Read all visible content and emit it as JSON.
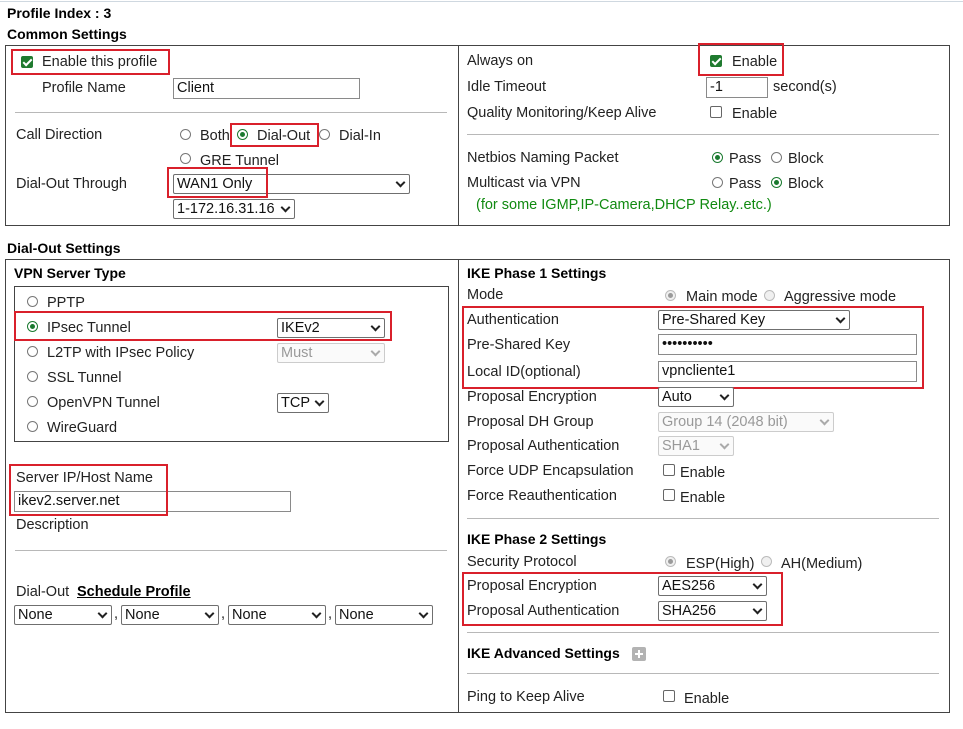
{
  "page": {
    "profile_index": "Profile Index : 3",
    "common_settings_title": "Common Settings",
    "dialout_settings_title": "Dial-Out Settings"
  },
  "common": {
    "enable_profile_label": "Enable this profile",
    "enable_profile_checked": true,
    "profile_name_label": "Profile Name",
    "profile_name_value": "Client",
    "call_direction_label": "Call Direction",
    "call_direction_options": [
      "Both",
      "Dial-Out",
      "Dial-In",
      "GRE Tunnel"
    ],
    "call_direction_selected": "Dial-Out",
    "dialout_through_label": "Dial-Out Through",
    "dialout_through_value": "WAN1 Only",
    "dialout_ip_value": "1-172.16.31.16",
    "always_on_label": "Always on",
    "always_on_enable_label": "Enable",
    "always_on_checked": true,
    "idle_timeout_label": "Idle Timeout",
    "idle_timeout_value": "-1",
    "idle_timeout_unit": "second(s)",
    "quality_label": "Quality Monitoring/Keep Alive",
    "quality_enable_label": "Enable",
    "quality_checked": false,
    "netbios_label": "Netbios Naming Packet",
    "netbios_pass": "Pass",
    "netbios_block": "Block",
    "netbios_selected": "Pass",
    "multicast_label": "Multicast via VPN",
    "multicast_pass": "Pass",
    "multicast_block": "Block",
    "multicast_selected": "Block",
    "multicast_note": "(for some IGMP,IP-Camera,DHCP Relay..etc.)"
  },
  "dialout": {
    "vpn_server_type_title": "VPN Server Type",
    "vpn_types": [
      "PPTP",
      "IPsec Tunnel",
      "L2TP with IPsec Policy",
      "SSL Tunnel",
      "OpenVPN Tunnel",
      "WireGuard"
    ],
    "vpn_type_selected": "IPsec Tunnel",
    "ipsec_version": "IKEv2",
    "l2tp_policy": "Must",
    "openvpn_proto": "TCP",
    "server_host_label": "Server IP/Host Name",
    "server_host_value": "ikev2.server.net",
    "description_label": "Description",
    "dialout_label": "Dial-Out",
    "schedule_profile_link": "Schedule Profile",
    "schedule_values": [
      "None",
      "None",
      "None",
      "None"
    ],
    "schedule_separator": ","
  },
  "ike1": {
    "title": "IKE Phase 1 Settings",
    "mode_label": "Mode",
    "mode_main": "Main mode",
    "mode_aggressive": "Aggressive mode",
    "auth_label": "Authentication",
    "auth_value": "Pre-Shared Key",
    "psk_label": "Pre-Shared Key",
    "psk_value": "••••••••••",
    "local_id_label": "Local ID(optional)",
    "local_id_value": "vpncliente1",
    "prop_enc_label": "Proposal Encryption",
    "prop_enc_value": "Auto",
    "prop_dh_label": "Proposal DH Group",
    "prop_dh_value": "Group 14 (2048 bit)",
    "prop_auth_label": "Proposal Authentication",
    "prop_auth_value": "SHA1",
    "force_udp_label": "Force UDP Encapsulation",
    "force_udp_enable": "Enable",
    "force_reauth_label": "Force Reauthentication",
    "force_reauth_enable": "Enable"
  },
  "ike2": {
    "title": "IKE Phase 2 Settings",
    "sec_proto_label": "Security Protocol",
    "esp_label": "ESP(High)",
    "ah_label": "AH(Medium)",
    "prop_enc_label": "Proposal Encryption",
    "prop_enc_value": "AES256",
    "prop_auth_label": "Proposal Authentication",
    "prop_auth_value": "SHA256"
  },
  "advanced": {
    "title": "IKE Advanced Settings",
    "ping_label": "Ping to Keep Alive",
    "ping_enable": "Enable"
  }
}
